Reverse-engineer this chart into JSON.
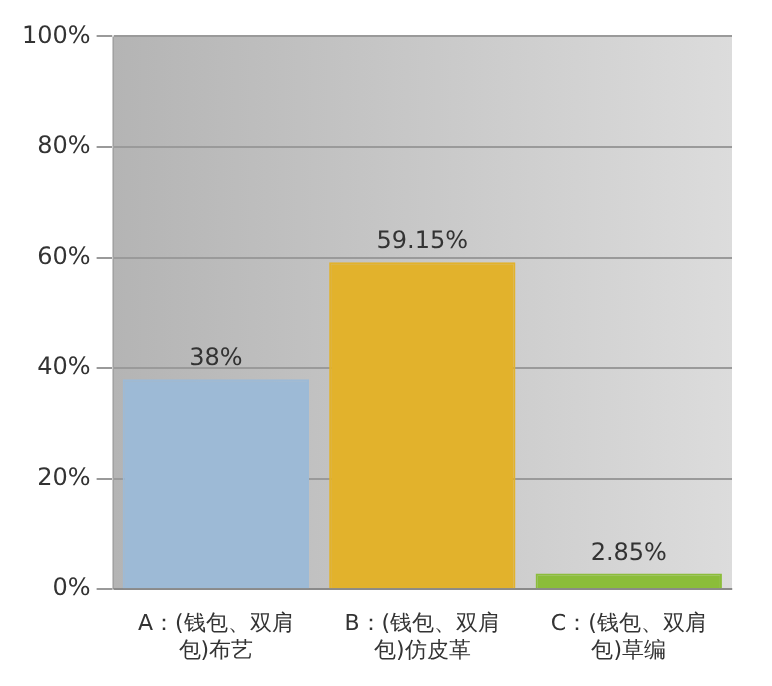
{
  "chart_data": {
    "type": "bar",
    "categories": [
      "A：(钱包、双肩包)布艺",
      "B：(钱包、双肩包)仿皮革",
      "C：(钱包、双肩包)草编"
    ],
    "values": [
      38,
      59.15,
      2.85
    ],
    "colors": [
      "#9dbad6",
      "#e2b22c",
      "#8bbd3a"
    ],
    "value_labels": [
      "38%",
      "59.15%",
      "2.85%"
    ],
    "ylim": [
      0,
      100
    ],
    "yticks": [
      {
        "value": 0,
        "label": "0%"
      },
      {
        "value": 20,
        "label": "20%"
      },
      {
        "value": 40,
        "label": "40%"
      },
      {
        "value": 60,
        "label": "60%"
      },
      {
        "value": 80,
        "label": "80%"
      },
      {
        "value": 100,
        "label": "100%"
      }
    ],
    "grid": "y",
    "legend": false
  }
}
